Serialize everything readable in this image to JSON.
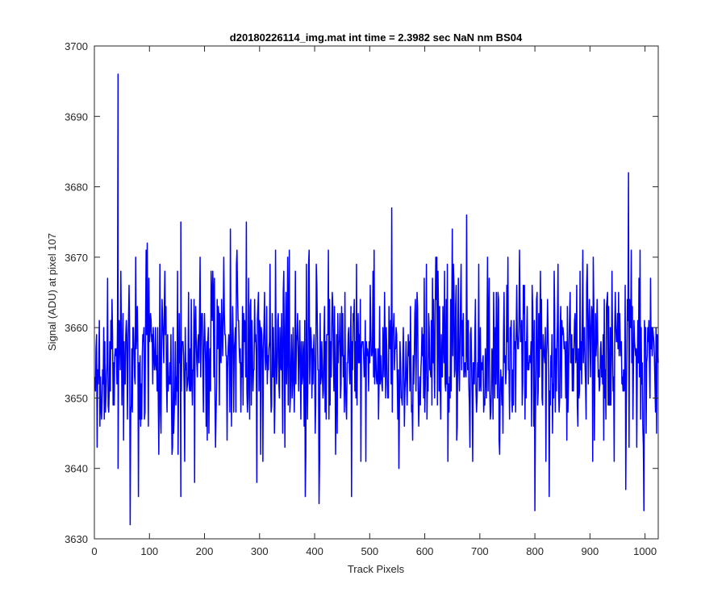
{
  "chart_data": {
    "type": "line",
    "title": "d20180226114_img.mat int time = 2.3982 sec  NaN nm BS04",
    "xlabel": "Track Pixels",
    "ylabel": "Signal (ADU) at pixel 107",
    "xlim": [
      0,
      1024
    ],
    "ylim": [
      3630,
      3700
    ],
    "xticks": [
      0,
      100,
      200,
      300,
      400,
      500,
      600,
      700,
      800,
      900,
      1000
    ],
    "yticks": [
      3630,
      3640,
      3650,
      3660,
      3670,
      3680,
      3690,
      3700
    ],
    "grid": false,
    "legend": "none",
    "line_color": "#0000ff",
    "series": [
      {
        "x_start": 1,
        "x_step": 1,
        "count": 1024,
        "distribution": {
          "mean": 3656,
          "typical_range": [
            3644,
            3668
          ]
        },
        "notable_points": [
          {
            "x": 43,
            "y": 3696
          },
          {
            "x": 43,
            "y": 3640
          },
          {
            "x": 65,
            "y": 3632
          },
          {
            "x": 80,
            "y": 3636
          },
          {
            "x": 96,
            "y": 3672
          },
          {
            "x": 157,
            "y": 3636
          },
          {
            "x": 157,
            "y": 3675
          },
          {
            "x": 182,
            "y": 3638
          },
          {
            "x": 247,
            "y": 3674
          },
          {
            "x": 276,
            "y": 3675
          },
          {
            "x": 295,
            "y": 3638
          },
          {
            "x": 383,
            "y": 3636
          },
          {
            "x": 408,
            "y": 3635
          },
          {
            "x": 467,
            "y": 3636
          },
          {
            "x": 540,
            "y": 3677
          },
          {
            "x": 553,
            "y": 3640
          },
          {
            "x": 650,
            "y": 3674
          },
          {
            "x": 676,
            "y": 3676
          },
          {
            "x": 800,
            "y": 3634
          },
          {
            "x": 826,
            "y": 3636
          },
          {
            "x": 965,
            "y": 3637
          },
          {
            "x": 970,
            "y": 3682
          },
          {
            "x": 998,
            "y": 3634
          }
        ]
      }
    ]
  }
}
